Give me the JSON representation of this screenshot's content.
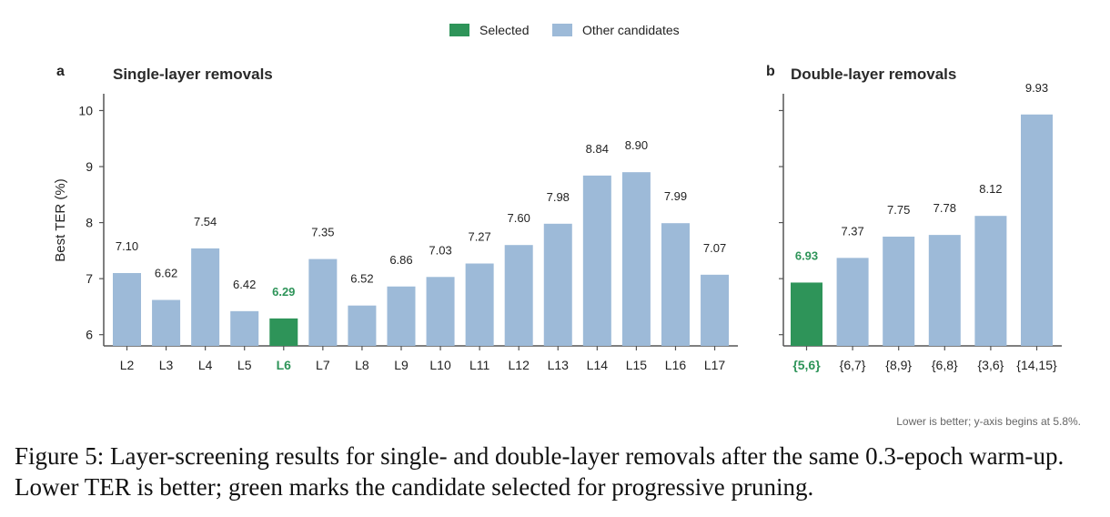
{
  "legend": {
    "selected_label": "Selected",
    "other_label": "Other candidates"
  },
  "colors": {
    "selected": "#2e9459",
    "other": "#9dbad8",
    "axis": "#555555",
    "text": "#222222"
  },
  "chart_data": [
    {
      "type": "bar",
      "panel_letter": "a",
      "title": "Single-layer removals",
      "ylabel": "Best TER (%)",
      "ylim": [
        5.8,
        10.3
      ],
      "yticks": [
        6,
        7,
        8,
        9,
        10
      ],
      "categories": [
        "L2",
        "L3",
        "L4",
        "L5",
        "L6",
        "L7",
        "L8",
        "L9",
        "L10",
        "L11",
        "L12",
        "L13",
        "L14",
        "L15",
        "L16",
        "L17"
      ],
      "values": [
        7.1,
        6.62,
        7.54,
        6.42,
        6.29,
        7.35,
        6.52,
        6.86,
        7.03,
        7.27,
        7.6,
        7.98,
        8.84,
        8.9,
        7.99,
        7.07
      ],
      "value_labels": [
        "7.10",
        "6.62",
        "7.54",
        "6.42",
        "6.29",
        "7.35",
        "6.52",
        "6.86",
        "7.03",
        "7.27",
        "7.60",
        "7.98",
        "8.84",
        "8.90",
        "7.99",
        "7.07"
      ],
      "selected_index": 4
    },
    {
      "type": "bar",
      "panel_letter": "b",
      "title": "Double-layer removals",
      "ylim": [
        5.8,
        10.3
      ],
      "yticks": [
        6,
        7,
        8,
        9,
        10
      ],
      "categories": [
        "{5,6}",
        "{6,7}",
        "{8,9}",
        "{6,8}",
        "{3,6}",
        "{14,15}"
      ],
      "values": [
        6.93,
        7.37,
        7.75,
        7.78,
        8.12,
        9.93
      ],
      "value_labels": [
        "6.93",
        "7.37",
        "7.75",
        "7.78",
        "8.12",
        "9.93"
      ],
      "selected_index": 0
    }
  ],
  "note": "Lower is better; y-axis begins at 5.8%.",
  "caption": "Figure 5: Layer-screening results for single- and double-layer removals after the same 0.3-epoch warm-up. Lower TER is better; green marks the candidate selected for progressive pruning."
}
